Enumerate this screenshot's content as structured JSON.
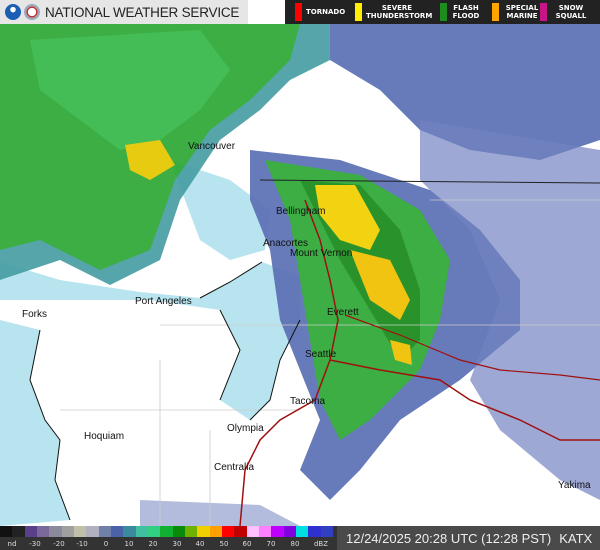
{
  "header": {
    "title": "NATIONAL WEATHER SERVICE"
  },
  "warnings": [
    {
      "label": "TORNADO",
      "color": "#ff0000"
    },
    {
      "label": "SEVERE THUNDERSTORM",
      "color": "#ffee00"
    },
    {
      "label": "FLASH FLOOD",
      "color": "#1e8c1e"
    },
    {
      "label": "SPECIAL MARINE",
      "color": "#ffa500"
    },
    {
      "label": "SNOW SQUALL",
      "color": "#c71585"
    }
  ],
  "cities": [
    "Vancouver",
    "Bellingham",
    "Anacortes",
    "Mount Vernon",
    "Port Angeles",
    "Forks",
    "Everett",
    "Seattle",
    "Tacoma",
    "Olympia",
    "Hoquiam",
    "Centralia",
    "Yakima"
  ],
  "legend": {
    "ticks": [
      "nd",
      "-30",
      "-20",
      "-10",
      "0",
      "10",
      "20",
      "30",
      "40",
      "50",
      "60",
      "70",
      "80",
      "dBZ"
    ],
    "colors": [
      "#111111",
      "#222222",
      "#5a3f8a",
      "#7a6a9a",
      "#8a8a9a",
      "#a0a0a0",
      "#c0c0a8",
      "#b0b0c0",
      "#7080a8",
      "#4a62a8",
      "#3c8aa0",
      "#40c0a0",
      "#30d080",
      "#10b030",
      "#0a8a0a",
      "#70b000",
      "#f0d000",
      "#ffa000",
      "#ff0000",
      "#c00000",
      "#ffc0ff",
      "#ff80ff",
      "#c000ff",
      "#8000e0",
      "#00e0e0",
      "#3030d0",
      "#3040c0"
    ]
  },
  "timestamp": "12/24/2025 20:28 UTC (12:28 PST)",
  "station": "KATX",
  "colors": {
    "water": "#b8e4ef",
    "land": "#ffffff",
    "radar_green": "#2fa82f",
    "radar_yellow": "#f0d000",
    "radar_blue": "#5a6fb0",
    "highway": "#a01010"
  }
}
